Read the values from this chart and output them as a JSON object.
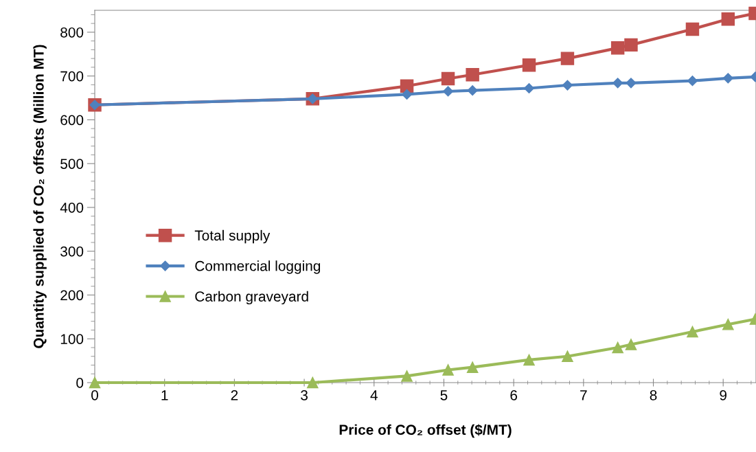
{
  "chart_data": {
    "type": "line",
    "xlabel": "Price of CO₂ offset ($/MT)",
    "ylabel": "Quantity supplied of CO₂ offsets (Million MT)",
    "x": [
      0,
      3.12,
      4.47,
      5.06,
      5.41,
      6.22,
      6.77,
      7.49,
      7.68,
      8.56,
      9.07,
      9.46
    ],
    "series": [
      {
        "name": "Total supply",
        "color": "#c0504d",
        "marker": "square",
        "values": [
          634,
          648,
          677,
          694,
          703,
          725,
          740,
          764,
          771,
          807,
          830,
          843
        ]
      },
      {
        "name": "Commercial logging",
        "color": "#4f81bd",
        "marker": "diamond",
        "values": [
          634,
          648,
          658,
          665,
          667,
          672,
          679,
          684,
          684,
          689,
          695,
          698
        ]
      },
      {
        "name": "Carbon graveyard",
        "color": "#9bbb59",
        "marker": "triangle",
        "values": [
          0,
          0,
          15,
          29,
          35,
          52,
          60,
          80,
          87,
          116,
          133,
          145
        ]
      }
    ],
    "xlim": [
      0,
      9.47
    ],
    "xticks": [
      0,
      1,
      2,
      3,
      4,
      5,
      6,
      7,
      8,
      9
    ],
    "ylim": [
      0,
      850
    ],
    "yticks": [
      0,
      100,
      200,
      300,
      400,
      500,
      600,
      700,
      800
    ],
    "grid": false,
    "legend": "center left",
    "line_style": "solid"
  }
}
